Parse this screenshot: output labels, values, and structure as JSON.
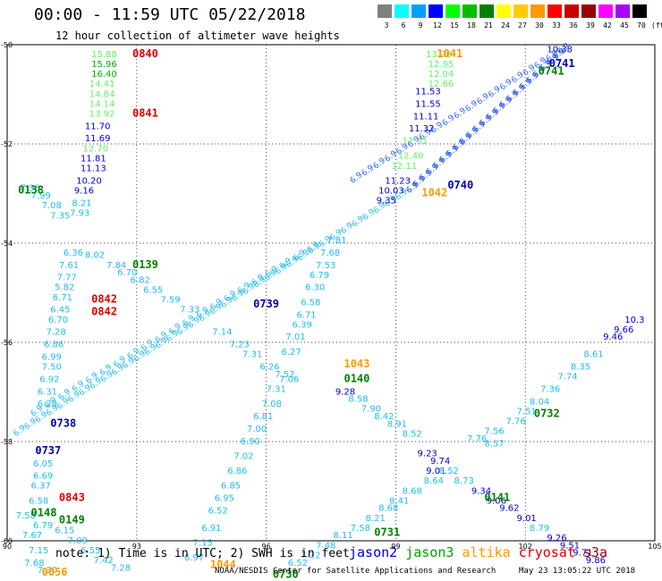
{
  "title": "00:00 - 11:59 UTC 05/22/2018",
  "subtitle": "12 hour collection of altimeter wave heights",
  "colorscale": {
    "unit": "(ft)",
    "stops": [
      {
        "label": "3",
        "color": "#808080"
      },
      {
        "label": "6",
        "color": "#00ffff"
      },
      {
        "label": "9",
        "color": "#00a0ff"
      },
      {
        "label": "12",
        "color": "#0000ff"
      },
      {
        "label": "15",
        "color": "#00ff00"
      },
      {
        "label": "18",
        "color": "#00c000"
      },
      {
        "label": "21",
        "color": "#008000"
      },
      {
        "label": "24",
        "color": "#ffff00"
      },
      {
        "label": "27",
        "color": "#ffcc00"
      },
      {
        "label": "30",
        "color": "#ff9900"
      },
      {
        "label": "33",
        "color": "#ff0000"
      },
      {
        "label": "36",
        "color": "#cc0000"
      },
      {
        "label": "39",
        "color": "#990000"
      },
      {
        "label": "42",
        "color": "#ff00ff"
      },
      {
        "label": "45",
        "color": "#aa00ff"
      },
      {
        "label": "70",
        "color": "#000000"
      }
    ]
  },
  "axes": {
    "x_ticks": [
      "90",
      "93",
      "96",
      "99",
      "102",
      "105"
    ],
    "y_ticks": [
      "-50",
      "-52",
      "-54",
      "-56",
      "-58",
      "-60"
    ]
  },
  "note": "note: 1) Time is in UTC; 2) SWH is in feet",
  "legend": [
    {
      "label": "jason2",
      "color": "#0000cc"
    },
    {
      "label": "jason3",
      "color": "#00a000"
    },
    {
      "label": "altika",
      "color": "#ff9900"
    },
    {
      "label": "cryosat",
      "color": "#dd0000"
    },
    {
      "label": "s3a",
      "color": "#990000"
    }
  ],
  "credit": "NOAA/NESDIS Center for Satellite Applications and Research",
  "timestamp": "May 23 13:05:22 UTC 2018",
  "map_labels": [
    {
      "t": "0840",
      "lon": 92.9,
      "lat": -50.25,
      "c": "#dd0000"
    },
    {
      "t": "0841",
      "lon": 92.9,
      "lat": -51.45,
      "c": "#dd0000"
    },
    {
      "t": "1041",
      "lon": 99.95,
      "lat": -50.25,
      "c": "#ff9900"
    },
    {
      "t": "0741",
      "lon": 102.55,
      "lat": -50.45,
      "c": "#0000aa"
    },
    {
      "t": "0741",
      "lon": 102.3,
      "lat": -50.6,
      "c": "#008000"
    },
    {
      "t": "0138",
      "lon": 90.25,
      "lat": -53.0,
      "c": "#008000"
    },
    {
      "t": "0740",
      "lon": 100.2,
      "lat": -52.9,
      "c": "#0000aa"
    },
    {
      "t": "1042",
      "lon": 99.6,
      "lat": -53.05,
      "c": "#ff9900"
    },
    {
      "t": "0139",
      "lon": 92.9,
      "lat": -54.5,
      "c": "#008000"
    },
    {
      "t": "0842",
      "lon": 91.95,
      "lat": -55.2,
      "c": "#dd0000"
    },
    {
      "t": "0842",
      "lon": 91.95,
      "lat": -55.45,
      "c": "#dd0000"
    },
    {
      "t": "0739",
      "lon": 95.7,
      "lat": -55.3,
      "c": "#0000aa"
    },
    {
      "t": "1043",
      "lon": 97.8,
      "lat": -56.5,
      "c": "#ff9900"
    },
    {
      "t": "0140",
      "lon": 97.8,
      "lat": -56.8,
      "c": "#008000"
    },
    {
      "t": "0732",
      "lon": 102.2,
      "lat": -57.5,
      "c": "#008000"
    },
    {
      "t": "0738",
      "lon": 91.0,
      "lat": -57.7,
      "c": "#0000aa"
    },
    {
      "t": "0737",
      "lon": 90.65,
      "lat": -58.25,
      "c": "#0000aa"
    },
    {
      "t": "0843",
      "lon": 91.2,
      "lat": -59.2,
      "c": "#dd0000"
    },
    {
      "t": "0148",
      "lon": 90.55,
      "lat": -59.5,
      "c": "#008000"
    },
    {
      "t": "0149",
      "lon": 91.2,
      "lat": -59.65,
      "c": "#008000"
    },
    {
      "t": "0141",
      "lon": 101.05,
      "lat": -59.2,
      "c": "#008000"
    },
    {
      "t": "0731",
      "lon": 98.5,
      "lat": -59.9,
      "c": "#008000"
    },
    {
      "t": "1044",
      "lon": 94.7,
      "lat": -60.55,
      "c": "#ff9900"
    },
    {
      "t": "0056",
      "lon": 90.8,
      "lat": -60.7,
      "c": "#ff9900"
    },
    {
      "t": "0730",
      "lon": 96.15,
      "lat": -60.75,
      "c": "#008000"
    }
  ],
  "map_values": [
    {
      "t": "15.88",
      "lon": 91.95,
      "lat": -50.25,
      "c": "#66ee66"
    },
    {
      "t": "15.96",
      "lon": 91.95,
      "lat": -50.45,
      "c": "#00b000"
    },
    {
      "t": "16.40",
      "lon": 91.95,
      "lat": -50.65,
      "c": "#00b000"
    },
    {
      "t": "14.41",
      "lon": 91.9,
      "lat": -50.85,
      "c": "#66ee66"
    },
    {
      "t": "14.84",
      "lon": 91.9,
      "lat": -51.05,
      "c": "#66ee66"
    },
    {
      "t": "14.14",
      "lon": 91.9,
      "lat": -51.25,
      "c": "#66ee66"
    },
    {
      "t": "13.92",
      "lon": 91.9,
      "lat": -51.45,
      "c": "#66ee66"
    },
    {
      "t": "11.70",
      "lon": 91.8,
      "lat": -51.7,
      "c": "#0000cc"
    },
    {
      "t": "11.69",
      "lon": 91.8,
      "lat": -51.95,
      "c": "#0000cc"
    },
    {
      "t": "12.70",
      "lon": 91.75,
      "lat": -52.15,
      "c": "#66ee66"
    },
    {
      "t": "11.81",
      "lon": 91.7,
      "lat": -52.35,
      "c": "#0000cc"
    },
    {
      "t": "11.13",
      "lon": 91.7,
      "lat": -52.55,
      "c": "#0000cc"
    },
    {
      "t": "10.20",
      "lon": 91.6,
      "lat": -52.8,
      "c": "#0000cc"
    },
    {
      "t": "9.16",
      "lon": 91.55,
      "lat": -53.0,
      "c": "#0000cc"
    },
    {
      "t": "8.21",
      "lon": 91.5,
      "lat": -53.25,
      "c": "#22bbee"
    },
    {
      "t": "7.93",
      "lon": 91.45,
      "lat": -53.45,
      "c": "#22bbee"
    },
    {
      "t": "6.36",
      "lon": 91.3,
      "lat": -54.25,
      "c": "#22bbee"
    },
    {
      "t": "7.61",
      "lon": 91.2,
      "lat": -54.5,
      "c": "#22bbee"
    },
    {
      "t": "7.77",
      "lon": 91.15,
      "lat": -54.75,
      "c": "#22bbee"
    },
    {
      "t": "5.82",
      "lon": 91.1,
      "lat": -54.95,
      "c": "#22bbee"
    },
    {
      "t": "6.71",
      "lon": 91.05,
      "lat": -55.15,
      "c": "#22bbee"
    },
    {
      "t": "6.45",
      "lon": 91.0,
      "lat": -55.4,
      "c": "#22bbee"
    },
    {
      "t": "6.70",
      "lon": 90.95,
      "lat": -55.6,
      "c": "#22bbee"
    },
    {
      "t": "7.28",
      "lon": 90.9,
      "lat": -55.85,
      "c": "#22bbee"
    },
    {
      "t": "6.86",
      "lon": 90.85,
      "lat": -56.1,
      "c": "#22bbee"
    },
    {
      "t": "6.99",
      "lon": 90.8,
      "lat": -56.35,
      "c": "#22bbee"
    },
    {
      "t": "7.50",
      "lon": 90.8,
      "lat": -56.55,
      "c": "#22bbee"
    },
    {
      "t": "6.92",
      "lon": 90.75,
      "lat": -56.8,
      "c": "#22bbee"
    },
    {
      "t": "6.31",
      "lon": 90.7,
      "lat": -57.05,
      "c": "#22bbee"
    },
    {
      "t": "6.29",
      "lon": 90.7,
      "lat": -57.3,
      "c": "#22bbee"
    },
    {
      "t": "6.05",
      "lon": 90.6,
      "lat": -58.5,
      "c": "#22bbee"
    },
    {
      "t": "6.69",
      "lon": 90.6,
      "lat": -58.75,
      "c": "#22bbee"
    },
    {
      "t": "6.37",
      "lon": 90.55,
      "lat": -58.95,
      "c": "#22bbee"
    },
    {
      "t": "6.58",
      "lon": 90.5,
      "lat": -59.25,
      "c": "#22bbee"
    },
    {
      "t": "7.36",
      "lon": 90.3,
      "lat": -52.95,
      "c": "#22bbee"
    },
    {
      "t": "7.99",
      "lon": 90.55,
      "lat": -53.1,
      "c": "#22bbee"
    },
    {
      "t": "7.08",
      "lon": 90.8,
      "lat": -53.3,
      "c": "#22bbee"
    },
    {
      "t": "7.35",
      "lon": 91.0,
      "lat": -53.5,
      "c": "#22bbee"
    },
    {
      "t": "8.02",
      "lon": 91.8,
      "lat": -54.3,
      "c": "#22bbee"
    },
    {
      "t": "7.84",
      "lon": 92.3,
      "lat": -54.5,
      "c": "#22bbee"
    },
    {
      "t": "6.70",
      "lon": 92.55,
      "lat": -54.65,
      "c": "#22bbee"
    },
    {
      "t": "6.82",
      "lon": 92.85,
      "lat": -54.8,
      "c": "#22bbee"
    },
    {
      "t": "6.55",
      "lon": 93.15,
      "lat": -55.0,
      "c": "#22bbee"
    },
    {
      "t": "7.59",
      "lon": 93.55,
      "lat": -55.2,
      "c": "#22bbee"
    },
    {
      "t": "7.33",
      "lon": 94.0,
      "lat": -55.4,
      "c": "#22bbee"
    },
    {
      "t": "7.14",
      "lon": 94.75,
      "lat": -55.85,
      "c": "#22bbee"
    },
    {
      "t": "7.23",
      "lon": 95.15,
      "lat": -56.1,
      "c": "#22bbee"
    },
    {
      "t": "7.31",
      "lon": 95.45,
      "lat": -56.3,
      "c": "#22bbee"
    },
    {
      "t": "6.26",
      "lon": 95.85,
      "lat": -56.55,
      "c": "#22bbee"
    },
    {
      "t": "7.06",
      "lon": 96.3,
      "lat": -56.8,
      "c": "#22bbee"
    },
    {
      "t": "9.28",
      "lon": 97.6,
      "lat": -57.05,
      "c": "#0000cc"
    },
    {
      "t": "8.58",
      "lon": 97.9,
      "lat": -57.2,
      "c": "#22bbee"
    },
    {
      "t": "7.90",
      "lon": 98.2,
      "lat": -57.4,
      "c": "#22bbee"
    },
    {
      "t": "8.42",
      "lon": 98.5,
      "lat": -57.55,
      "c": "#22bbee"
    },
    {
      "t": "8.91",
      "lon": 98.8,
      "lat": -57.7,
      "c": "#22bbee"
    },
    {
      "t": "8.52",
      "lon": 99.15,
      "lat": -57.9,
      "c": "#22bbee"
    },
    {
      "t": "8.57",
      "lon": 101.05,
      "lat": -58.1,
      "c": "#22bbee"
    },
    {
      "t": "9.23",
      "lon": 99.5,
      "lat": -58.3,
      "c": "#0000cc"
    },
    {
      "t": "9.74",
      "lon": 99.8,
      "lat": -58.45,
      "c": "#0000cc"
    },
    {
      "t": "9.01",
      "lon": 99.7,
      "lat": -58.65,
      "c": "#0000cc"
    },
    {
      "t": "8.52",
      "lon": 100.0,
      "lat": -58.65,
      "c": "#22bbee"
    },
    {
      "t": "8.73",
      "lon": 100.35,
      "lat": -58.85,
      "c": "#22bbee"
    },
    {
      "t": "9.34",
      "lon": 100.75,
      "lat": -59.05,
      "c": "#0000cc"
    },
    {
      "t": "9.06",
      "lon": 101.1,
      "lat": -59.25,
      "c": "#0000cc"
    },
    {
      "t": "9.62",
      "lon": 101.4,
      "lat": -59.4,
      "c": "#0000cc"
    },
    {
      "t": "9.01",
      "lon": 101.8,
      "lat": -59.6,
      "c": "#0000cc"
    },
    {
      "t": "8.79",
      "lon": 102.1,
      "lat": -59.8,
      "c": "#22bbee"
    },
    {
      "t": "9.26",
      "lon": 102.5,
      "lat": -60.0,
      "c": "#0000cc"
    },
    {
      "t": "9.51",
      "lon": 102.8,
      "lat": -60.15,
      "c": "#0000cc"
    },
    {
      "t": "9.71",
      "lon": 103.1,
      "lat": -60.3,
      "c": "#0000cc"
    },
    {
      "t": "9.86",
      "lon": 103.4,
      "lat": -60.45,
      "c": "#0000cc"
    },
    {
      "t": "6.79",
      "lon": 97.0,
      "lat": -54.7,
      "c": "#22bbee"
    },
    {
      "t": "6.30",
      "lon": 96.9,
      "lat": -54.95,
      "c": "#22bbee"
    },
    {
      "t": "6.58",
      "lon": 96.8,
      "lat": -55.25,
      "c": "#22bbee"
    },
    {
      "t": "6.71",
      "lon": 96.7,
      "lat": -55.5,
      "c": "#22bbee"
    },
    {
      "t": "6.39",
      "lon": 96.6,
      "lat": -55.7,
      "c": "#22bbee"
    },
    {
      "t": "7.01",
      "lon": 96.45,
      "lat": -55.95,
      "c": "#22bbee"
    },
    {
      "t": "6.27",
      "lon": 96.35,
      "lat": -56.25,
      "c": "#22bbee"
    },
    {
      "t": "7.52",
      "lon": 96.2,
      "lat": -56.7,
      "c": "#22bbee"
    },
    {
      "t": "7.31",
      "lon": 96.0,
      "lat": -57.0,
      "c": "#22bbee"
    },
    {
      "t": "7.08",
      "lon": 95.9,
      "lat": -57.3,
      "c": "#22bbee"
    },
    {
      "t": "6.81",
      "lon": 95.7,
      "lat": -57.55,
      "c": "#22bbee"
    },
    {
      "t": "7.00",
      "lon": 95.55,
      "lat": -57.8,
      "c": "#22bbee"
    },
    {
      "t": "6.90",
      "lon": 95.4,
      "lat": -58.05,
      "c": "#22bbee"
    },
    {
      "t": "7.02",
      "lon": 95.25,
      "lat": -58.35,
      "c": "#22bbee"
    },
    {
      "t": "6.86",
      "lon": 95.1,
      "lat": -58.65,
      "c": "#22bbee"
    },
    {
      "t": "6.85",
      "lon": 94.95,
      "lat": -58.95,
      "c": "#22bbee"
    },
    {
      "t": "6.95",
      "lon": 94.8,
      "lat": -59.2,
      "c": "#22bbee"
    },
    {
      "t": "6.52",
      "lon": 94.65,
      "lat": -59.45,
      "c": "#22bbee"
    },
    {
      "t": "6.91",
      "lon": 94.5,
      "lat": -59.8,
      "c": "#22bbee"
    },
    {
      "t": "7.15",
      "lon": 94.3,
      "lat": -60.1,
      "c": "#22bbee"
    },
    {
      "t": "6.97",
      "lon": 94.1,
      "lat": -60.4,
      "c": "#22bbee"
    },
    {
      "t": "7.68",
      "lon": 97.25,
      "lat": -54.25,
      "c": "#22bbee"
    },
    {
      "t": "7.53",
      "lon": 97.15,
      "lat": -54.5,
      "c": "#22bbee"
    },
    {
      "t": "7.81",
      "lon": 97.4,
      "lat": -54.0,
      "c": "#22bbee"
    },
    {
      "t": "11.53",
      "lon": 99.45,
      "lat": -51.0,
      "c": "#0000cc"
    },
    {
      "t": "11.55",
      "lon": 99.45,
      "lat": -51.25,
      "c": "#0000cc"
    },
    {
      "t": "11.11",
      "lon": 99.4,
      "lat": -51.5,
      "c": "#0000cc"
    },
    {
      "t": "11.32",
      "lon": 99.3,
      "lat": -51.75,
      "c": "#0000cc"
    },
    {
      "t": "12.31",
      "lon": 99.15,
      "lat": -52.0,
      "c": "#66ee66"
    },
    {
      "t": "12.40",
      "lon": 99.05,
      "lat": -52.3,
      "c": "#66ee66"
    },
    {
      "t": "12.11",
      "lon": 98.9,
      "lat": -52.5,
      "c": "#66ee66"
    },
    {
      "t": "11.23",
      "lon": 98.75,
      "lat": -52.8,
      "c": "#0000cc"
    },
    {
      "t": "10.03",
      "lon": 98.6,
      "lat": -53.0,
      "c": "#0000cc"
    },
    {
      "t": "9.35",
      "lon": 98.55,
      "lat": -53.2,
      "c": "#0000cc"
    },
    {
      "t": "13.26",
      "lon": 99.7,
      "lat": -50.25,
      "c": "#66ee66"
    },
    {
      "t": "12.95",
      "lon": 99.75,
      "lat": -50.45,
      "c": "#66ee66"
    },
    {
      "t": "12.04",
      "lon": 99.75,
      "lat": -50.65,
      "c": "#66ee66"
    },
    {
      "t": "12.66",
      "lon": 99.75,
      "lat": -50.85,
      "c": "#66ee66"
    },
    {
      "t": "10.38",
      "lon": 102.5,
      "lat": -50.15,
      "c": "#0000cc"
    },
    {
      "t": "10.3",
      "lon": 104.3,
      "lat": -55.6,
      "c": "#0000cc"
    },
    {
      "t": "9.66",
      "lon": 104.05,
      "lat": -55.8,
      "c": "#0000cc"
    },
    {
      "t": "9.46",
      "lon": 103.8,
      "lat": -55.95,
      "c": "#0000cc"
    },
    {
      "t": "8.61",
      "lon": 103.35,
      "lat": -56.3,
      "c": "#22bbee"
    },
    {
      "t": "8.35",
      "lon": 103.05,
      "lat": -56.55,
      "c": "#22bbee"
    },
    {
      "t": "7.74",
      "lon": 102.75,
      "lat": -56.75,
      "c": "#22bbee"
    },
    {
      "t": "7.36",
      "lon": 102.35,
      "lat": -57.0,
      "c": "#22bbee"
    },
    {
      "t": "8.04",
      "lon": 102.1,
      "lat": -57.25,
      "c": "#22bbee"
    },
    {
      "t": "7.51",
      "lon": 101.8,
      "lat": -57.45,
      "c": "#22bbee"
    },
    {
      "t": "7.76",
      "lon": 101.55,
      "lat": -57.65,
      "c": "#22bbee"
    },
    {
      "t": "7.56",
      "lon": 101.05,
      "lat": -57.85,
      "c": "#22bbee"
    },
    {
      "t": "7.76",
      "lon": 100.65,
      "lat": -58.0,
      "c": "#22bbee"
    },
    {
      "t": "8.64",
      "lon": 99.65,
      "lat": -58.85,
      "c": "#22bbee"
    },
    {
      "t": "8.68",
      "lon": 99.15,
      "lat": -59.05,
      "c": "#22bbee"
    },
    {
      "t": "8.41",
      "lon": 98.85,
      "lat": -59.25,
      "c": "#22bbee"
    },
    {
      "t": "8.68",
      "lon": 98.6,
      "lat": -59.4,
      "c": "#22bbee"
    },
    {
      "t": "8.21",
      "lon": 98.3,
      "lat": -59.6,
      "c": "#22bbee"
    },
    {
      "t": "7.58",
      "lon": 97.95,
      "lat": -59.8,
      "c": "#22bbee"
    },
    {
      "t": "8.11",
      "lon": 97.55,
      "lat": -59.95,
      "c": "#22bbee"
    },
    {
      "t": "7.48",
      "lon": 97.15,
      "lat": -60.15,
      "c": "#22bbee"
    },
    {
      "t": "7.22",
      "lon": 96.8,
      "lat": -60.35,
      "c": "#22bbee"
    },
    {
      "t": "6.52",
      "lon": 96.5,
      "lat": -60.5,
      "c": "#22bbee"
    },
    {
      "t": "7.42",
      "lon": 92.0,
      "lat": -60.45,
      "c": "#22bbee"
    },
    {
      "t": "7.28",
      "lon": 92.4,
      "lat": -60.6,
      "c": "#22bbee"
    },
    {
      "t": "6.55",
      "lon": 91.7,
      "lat": -60.25,
      "c": "#22bbee"
    },
    {
      "t": "7.09",
      "lon": 91.4,
      "lat": -60.05,
      "c": "#22bbee"
    },
    {
      "t": "6.15",
      "lon": 91.1,
      "lat": -59.85,
      "c": "#22bbee"
    },
    {
      "t": "7.58",
      "lon": 90.2,
      "lat": -59.55,
      "c": "#22bbee"
    },
    {
      "t": "6.79",
      "lon": 90.6,
      "lat": -59.75,
      "c": "#22bbee"
    },
    {
      "t": "7.67",
      "lon": 90.35,
      "lat": -59.95,
      "c": "#22bbee"
    },
    {
      "t": "7.15",
      "lon": 90.5,
      "lat": -60.25,
      "c": "#22bbee"
    },
    {
      "t": "7.68",
      "lon": 90.4,
      "lat": -60.5,
      "c": "#22bbee"
    },
    {
      "t": "7.30",
      "lon": 90.7,
      "lat": -60.65,
      "c": "#22bbee"
    }
  ]
}
